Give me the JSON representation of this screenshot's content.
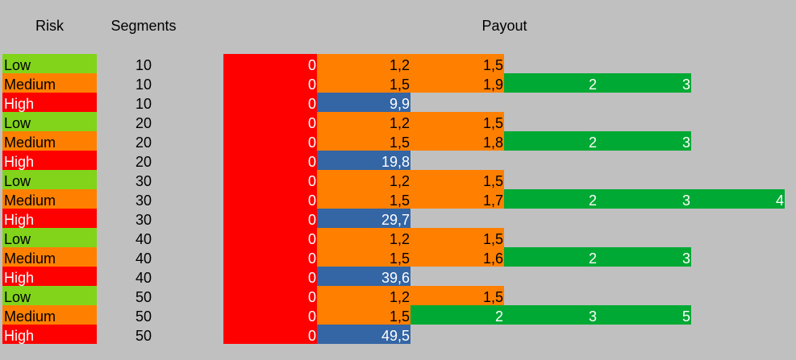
{
  "headers": {
    "risk": "Risk",
    "segments": "Segments",
    "payout": "Payout"
  },
  "colors": {
    "red": "#ff0000",
    "orange": "#ff8000",
    "green": "#00a933",
    "blue": "#3465a4",
    "lime": "#81d41a",
    "background": "#c0c0c0"
  },
  "rows": [
    {
      "risk": "Low",
      "risk_color": "lime",
      "segments": "10",
      "payout": [
        {
          "v": "0",
          "c": "red"
        },
        {
          "v": "1,2",
          "c": "orange"
        },
        {
          "v": "1,5",
          "c": "orange"
        }
      ]
    },
    {
      "risk": "Medium",
      "risk_color": "orange",
      "segments": "10",
      "payout": [
        {
          "v": "0",
          "c": "red"
        },
        {
          "v": "1,5",
          "c": "orange"
        },
        {
          "v": "1,9",
          "c": "orange"
        },
        {
          "v": "2",
          "c": "green"
        },
        {
          "v": "3",
          "c": "green"
        }
      ]
    },
    {
      "risk": "High",
      "risk_color": "red",
      "segments": "10",
      "payout": [
        {
          "v": "0",
          "c": "red"
        },
        {
          "v": "9,9",
          "c": "blue"
        }
      ]
    },
    {
      "risk": "Low",
      "risk_color": "lime",
      "segments": "20",
      "payout": [
        {
          "v": "0",
          "c": "red"
        },
        {
          "v": "1,2",
          "c": "orange"
        },
        {
          "v": "1,5",
          "c": "orange"
        }
      ]
    },
    {
      "risk": "Medium",
      "risk_color": "orange",
      "segments": "20",
      "payout": [
        {
          "v": "0",
          "c": "red"
        },
        {
          "v": "1,5",
          "c": "orange"
        },
        {
          "v": "1,8",
          "c": "orange"
        },
        {
          "v": "2",
          "c": "green"
        },
        {
          "v": "3",
          "c": "green"
        }
      ]
    },
    {
      "risk": "High",
      "risk_color": "red",
      "segments": "20",
      "payout": [
        {
          "v": "0",
          "c": "red"
        },
        {
          "v": "19,8",
          "c": "blue"
        }
      ]
    },
    {
      "risk": "Low",
      "risk_color": "lime",
      "segments": "30",
      "payout": [
        {
          "v": "0",
          "c": "red"
        },
        {
          "v": "1,2",
          "c": "orange"
        },
        {
          "v": "1,5",
          "c": "orange"
        }
      ]
    },
    {
      "risk": "Medium",
      "risk_color": "orange",
      "segments": "30",
      "payout": [
        {
          "v": "0",
          "c": "red"
        },
        {
          "v": "1,5",
          "c": "orange"
        },
        {
          "v": "1,7",
          "c": "orange"
        },
        {
          "v": "2",
          "c": "green"
        },
        {
          "v": "3",
          "c": "green"
        },
        {
          "v": "4",
          "c": "green"
        }
      ]
    },
    {
      "risk": "High",
      "risk_color": "red",
      "segments": "30",
      "payout": [
        {
          "v": "0",
          "c": "red"
        },
        {
          "v": "29,7",
          "c": "blue"
        }
      ]
    },
    {
      "risk": "Low",
      "risk_color": "lime",
      "segments": "40",
      "payout": [
        {
          "v": "0",
          "c": "red"
        },
        {
          "v": "1,2",
          "c": "orange"
        },
        {
          "v": "1,5",
          "c": "orange"
        }
      ]
    },
    {
      "risk": "Medium",
      "risk_color": "orange",
      "segments": "40",
      "payout": [
        {
          "v": "0",
          "c": "red"
        },
        {
          "v": "1,5",
          "c": "orange"
        },
        {
          "v": "1,6",
          "c": "orange"
        },
        {
          "v": "2",
          "c": "green"
        },
        {
          "v": "3",
          "c": "green"
        }
      ]
    },
    {
      "risk": "High",
      "risk_color": "red",
      "segments": "40",
      "payout": [
        {
          "v": "0",
          "c": "red"
        },
        {
          "v": "39,6",
          "c": "blue"
        }
      ]
    },
    {
      "risk": "Low",
      "risk_color": "lime",
      "segments": "50",
      "payout": [
        {
          "v": "0",
          "c": "red"
        },
        {
          "v": "1,2",
          "c": "orange"
        },
        {
          "v": "1,5",
          "c": "orange"
        }
      ]
    },
    {
      "risk": "Medium",
      "risk_color": "orange",
      "segments": "50",
      "payout": [
        {
          "v": "0",
          "c": "red"
        },
        {
          "v": "1,5",
          "c": "orange"
        },
        {
          "v": "2",
          "c": "green"
        },
        {
          "v": "3",
          "c": "green"
        },
        {
          "v": "5",
          "c": "green"
        }
      ]
    },
    {
      "risk": "High",
      "risk_color": "red",
      "segments": "50",
      "payout": [
        {
          "v": "0",
          "c": "red"
        },
        {
          "v": "49,5",
          "c": "blue"
        }
      ]
    }
  ]
}
